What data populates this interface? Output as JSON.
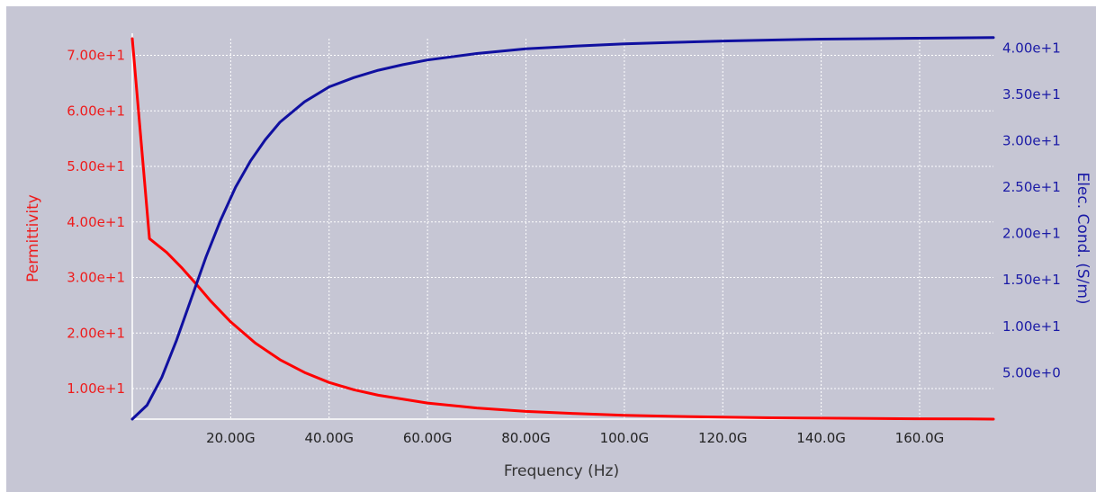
{
  "chart_data": {
    "type": "line",
    "xlabel": "Frequency (Hz)",
    "ylabel_left": "Permittivity",
    "ylabel_right": "Elec. Cond. (S/m)",
    "xlim": [
      0,
      175
    ],
    "x_unit": "GHz",
    "ylim_left": [
      4.5,
      73
    ],
    "ylim_right": [
      0,
      41
    ],
    "x_ticks": [
      {
        "value": 20,
        "label": "20.00G"
      },
      {
        "value": 40,
        "label": "40.00G"
      },
      {
        "value": 60,
        "label": "60.00G"
      },
      {
        "value": 80,
        "label": "80.00G"
      },
      {
        "value": 100,
        "label": "100.0G"
      },
      {
        "value": 120,
        "label": "120.0G"
      },
      {
        "value": 140,
        "label": "140.0G"
      },
      {
        "value": 160,
        "label": "160.0G"
      }
    ],
    "y_left_ticks": [
      {
        "value": 10,
        "label": "1.00e+1"
      },
      {
        "value": 20,
        "label": "2.00e+1"
      },
      {
        "value": 30,
        "label": "3.00e+1"
      },
      {
        "value": 40,
        "label": "4.00e+1"
      },
      {
        "value": 50,
        "label": "5.00e+1"
      },
      {
        "value": 60,
        "label": "6.00e+1"
      },
      {
        "value": 70,
        "label": "7.00e+1"
      }
    ],
    "y_right_ticks": [
      {
        "value": 5,
        "label": "5.00e+0"
      },
      {
        "value": 10,
        "label": "1.00e+1"
      },
      {
        "value": 15,
        "label": "1.50e+1"
      },
      {
        "value": 20,
        "label": "2.00e+1"
      },
      {
        "value": 25,
        "label": "2.50e+1"
      },
      {
        "value": 30,
        "label": "3.00e+1"
      },
      {
        "value": 35,
        "label": "3.50e+1"
      },
      {
        "value": 40,
        "label": "4.00e+1"
      }
    ],
    "grid": true,
    "series": [
      {
        "axis": "left",
        "color": "#ff0000",
        "x": [
          0,
          3.5,
          7,
          10,
          13,
          16,
          20,
          25,
          30,
          35,
          40,
          45,
          50,
          60,
          70,
          80,
          90,
          100,
          110,
          120,
          130,
          140,
          150,
          160,
          170,
          175
        ],
        "y": [
          73,
          37,
          34.5,
          31.8,
          28.8,
          25.7,
          22,
          18.2,
          15.2,
          12.9,
          11.1,
          9.8,
          8.8,
          7.4,
          6.5,
          5.9,
          5.5,
          5.2,
          5.0,
          4.85,
          4.75,
          4.68,
          4.62,
          4.57,
          4.53,
          4.5
        ]
      },
      {
        "axis": "right",
        "color": "#1010a0",
        "x": [
          0,
          3,
          6,
          9,
          12,
          15,
          18,
          21,
          24,
          27,
          30,
          35,
          40,
          45,
          50,
          55,
          60,
          70,
          80,
          90,
          100,
          110,
          120,
          130,
          140,
          150,
          160,
          170,
          175
        ],
        "y": [
          0,
          1.5,
          4.5,
          8.5,
          13,
          17.5,
          21.5,
          25,
          27.8,
          30.1,
          32,
          34.2,
          35.8,
          36.8,
          37.6,
          38.2,
          38.7,
          39.4,
          39.9,
          40.2,
          40.45,
          40.6,
          40.75,
          40.85,
          40.95,
          41.0,
          41.05,
          41.1,
          41.12
        ]
      }
    ]
  }
}
